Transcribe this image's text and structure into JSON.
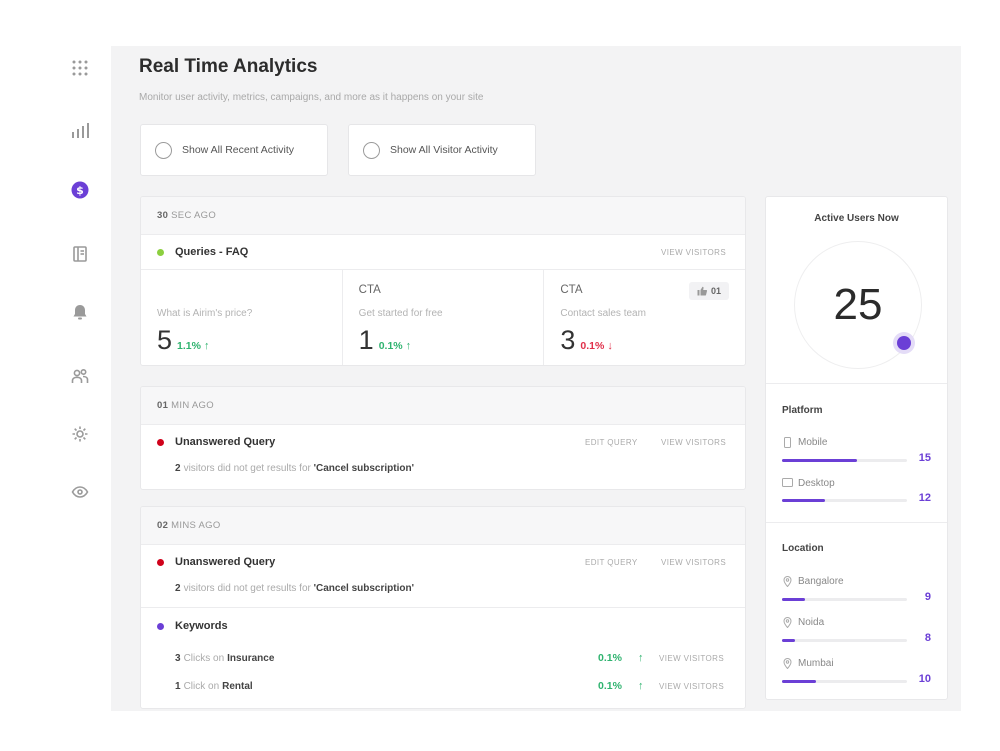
{
  "header": {
    "title": "Real Time Analytics",
    "subtitle": "Monitor user activity, metrics, campaigns, and more as it happens on your site"
  },
  "toggles": [
    {
      "label": "Show All Recent Activity"
    },
    {
      "label": "Show All Visitor Activity"
    }
  ],
  "sidebar": {
    "icons": [
      "apps-grid-icon",
      "bar-chart-icon",
      "dollar-icon",
      "book-icon",
      "bell-icon",
      "users-icon",
      "gear-icon",
      "eye-icon"
    ],
    "active_index": 2
  },
  "colors": {
    "accent": "#6b3fd6",
    "positive": "#2fb36f",
    "negative": "#e0304a",
    "dot_green": "#8ccf3f",
    "dot_red": "#d0021b",
    "dot_purple": "#6b3fd6"
  },
  "feed": [
    {
      "time_num": "30",
      "time_unit": "SEC AGO",
      "title": "Queries - FAQ",
      "link": "VIEW VISITORS",
      "stats": [
        {
          "label": "",
          "sub": "What is Airim's price?",
          "value": "5",
          "pct": "1.1%",
          "dir": "up"
        },
        {
          "label": "CTA",
          "sub": "Get started for free",
          "value": "1",
          "pct": "0.1%",
          "dir": "up"
        },
        {
          "label": "CTA",
          "sub": "Contact sales team",
          "value": "3",
          "pct": "0.1%",
          "dir": "down",
          "likes": "01"
        }
      ]
    },
    {
      "time_num": "01",
      "time_unit": "MIN AGO",
      "title": "Unanswered Query",
      "edit_link": "EDIT QUERY",
      "link": "VIEW VISITORS",
      "detail_count": "2",
      "detail_text": "visitors did not get results for",
      "detail_query": "'Cancel subscription'"
    },
    {
      "time_num": "02",
      "time_unit": "MINS AGO",
      "title": "Unanswered Query",
      "edit_link": "EDIT QUERY",
      "link": "VIEW VISITORS",
      "detail_count": "2",
      "detail_text": "visitors did not get results for",
      "detail_query": "'Cancel subscription'",
      "keywords": {
        "title": "Keywords",
        "items": [
          {
            "count": "3",
            "text": "Clicks on",
            "term": "Insurance",
            "pct": "0.1%",
            "link": "VIEW VISITORS"
          },
          {
            "count": "1",
            "text": "Click on",
            "term": "Rental",
            "pct": "0.1%",
            "link": "VIEW VISITORS"
          }
        ]
      }
    }
  ],
  "active_users": {
    "title": "Active Users Now",
    "count": "25"
  },
  "platform": {
    "title": "Platform",
    "items": [
      {
        "label": "Mobile",
        "value": "15",
        "fraction": 0.6
      },
      {
        "label": "Desktop",
        "value": "12",
        "fraction": 0.34
      }
    ]
  },
  "location": {
    "title": "Location",
    "items": [
      {
        "label": "Bangalore",
        "value": "9",
        "fraction": 0.18
      },
      {
        "label": "Noida",
        "value": "8",
        "fraction": 0.1
      },
      {
        "label": "Mumbai",
        "value": "10",
        "fraction": 0.27
      }
    ]
  }
}
